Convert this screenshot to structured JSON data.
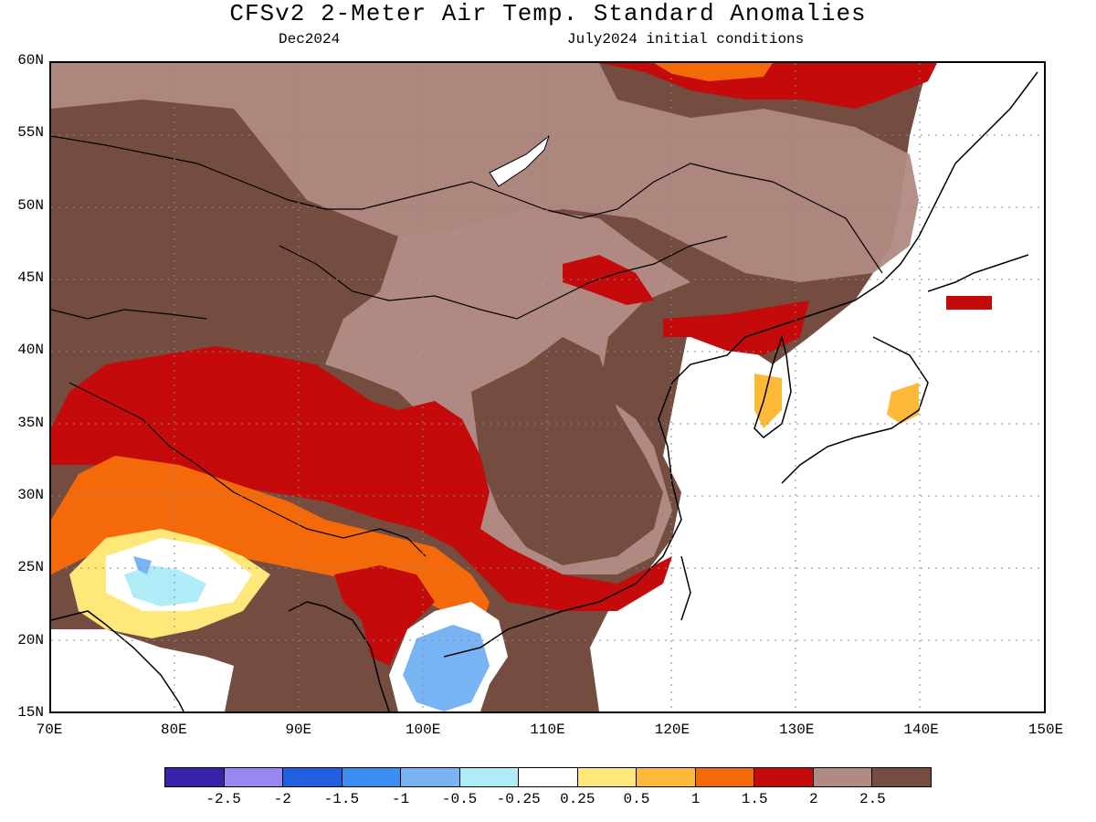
{
  "title": "CFSv2 2-Meter Air Temp. Standard Anomalies",
  "subtitle_left": "Dec2024",
  "subtitle_right": "July2024 initial conditions",
  "lat_labels": [
    "60N",
    "55N",
    "50N",
    "45N",
    "40N",
    "35N",
    "30N",
    "25N",
    "20N",
    "15N"
  ],
  "lon_labels": [
    "70E",
    "80E",
    "90E",
    "100E",
    "110E",
    "120E",
    "130E",
    "140E",
    "150E"
  ],
  "legend": {
    "colors": [
      "#3a22a8",
      "#9a86f0",
      "#1f5fe0",
      "#3a8ef0",
      "#78b4f4",
      "#b0ecf8",
      "#ffffff",
      "#fee87a",
      "#fdb93a",
      "#f46a0a",
      "#c40a0a",
      "#b08a82",
      "#744c40"
    ],
    "labels": [
      "-2.5",
      "-2",
      "-1.5",
      "-1",
      "-0.5",
      "-0.25",
      "0.25",
      "0.5",
      "1",
      "1.5",
      "2",
      "2.5"
    ]
  }
}
